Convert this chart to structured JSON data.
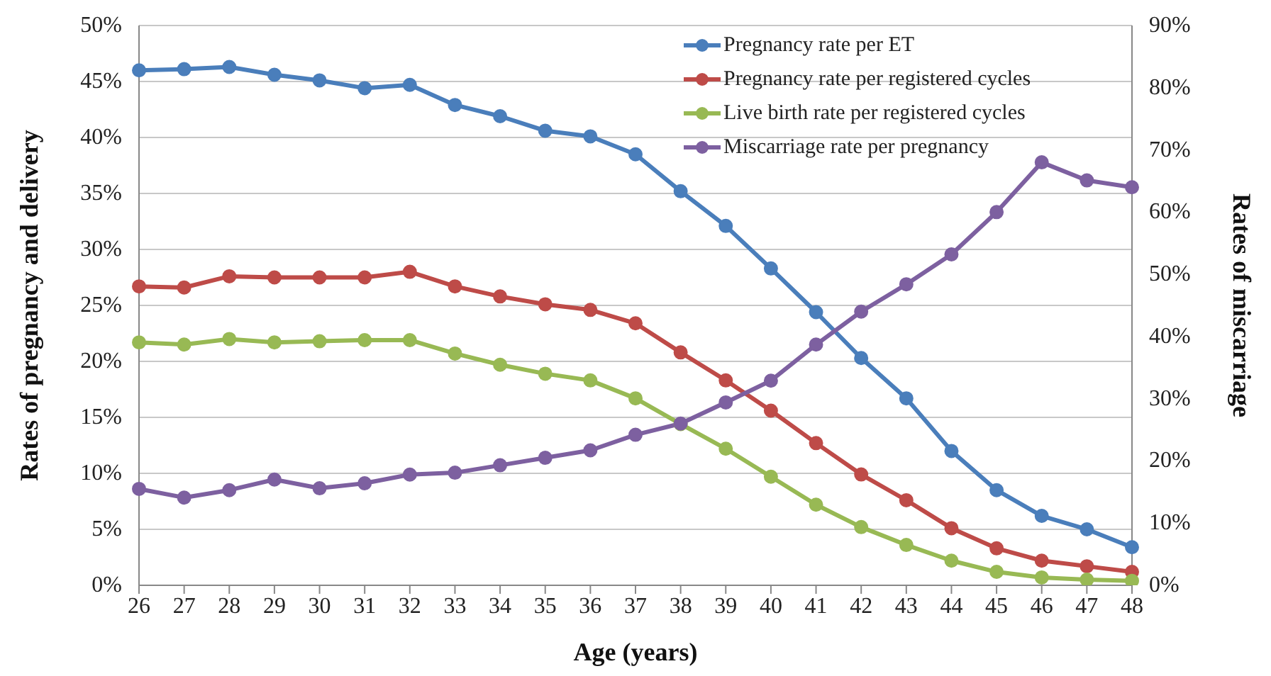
{
  "chart_data": {
    "type": "line",
    "xlabel": "Age (years)",
    "ylabel": "Rates of pregnancy and delivery",
    "y2label": "Rates of miscarriage",
    "categories": [
      "26",
      "27",
      "28",
      "29",
      "30",
      "31",
      "32",
      "33",
      "34",
      "35",
      "36",
      "37",
      "38",
      "39",
      "40",
      "41",
      "42",
      "43",
      "44",
      "45",
      "46",
      "47",
      "48"
    ],
    "series": [
      {
        "name": "Pregnancy rate per ET",
        "color": "#4a7ebb",
        "values": [
          46.0,
          46.1,
          46.3,
          45.6,
          45.1,
          44.4,
          44.7,
          42.9,
          41.9,
          40.6,
          40.1,
          38.5,
          35.2,
          32.1,
          28.3,
          24.4,
          20.3,
          16.7,
          12.0,
          8.5,
          6.2,
          5.0,
          3.4
        ]
      },
      {
        "name": "Pregnancy rate per registered cycles",
        "color": "#be4b48",
        "values": [
          26.7,
          26.6,
          27.6,
          27.5,
          27.5,
          27.5,
          28.0,
          26.7,
          25.8,
          25.1,
          24.6,
          23.4,
          20.8,
          18.3,
          15.6,
          12.7,
          9.9,
          7.6,
          5.1,
          3.3,
          2.2,
          1.7,
          1.2
        ]
      },
      {
        "name": "Live birth rate per registered cycles",
        "color": "#98b954",
        "values": [
          21.7,
          21.5,
          22.0,
          21.7,
          21.8,
          21.9,
          21.9,
          20.7,
          19.7,
          18.9,
          18.3,
          16.7,
          14.4,
          12.2,
          9.7,
          7.2,
          5.2,
          3.6,
          2.2,
          1.2,
          0.7,
          0.5,
          0.4
        ]
      },
      {
        "name": "Miscarriage rate per pregnancy",
        "color": "#7d60a0",
        "axis": "y2",
        "values": [
          15.5,
          14.1,
          15.3,
          17.0,
          15.6,
          16.4,
          17.8,
          18.1,
          19.3,
          20.5,
          21.7,
          24.2,
          26.0,
          29.4,
          32.9,
          38.7,
          44.0,
          48.4,
          53.2,
          60.0,
          68.0,
          65.1,
          64.0
        ]
      }
    ],
    "ylim": [
      0,
      50
    ],
    "yticks": [
      {
        "value": 0,
        "label": "0%"
      },
      {
        "value": 5,
        "label": "5%"
      },
      {
        "value": 10,
        "label": "10%"
      },
      {
        "value": 15,
        "label": "15%"
      },
      {
        "value": 20,
        "label": "20%"
      },
      {
        "value": 25,
        "label": "25%"
      },
      {
        "value": 30,
        "label": "30%"
      },
      {
        "value": 35,
        "label": "35%"
      },
      {
        "value": 40,
        "label": "40%"
      },
      {
        "value": 45,
        "label": "45%"
      },
      {
        "value": 50,
        "label": "50%"
      }
    ],
    "y2lim": [
      0,
      90
    ],
    "y2ticks": [
      {
        "value": 0,
        "label": "0%"
      },
      {
        "value": 10,
        "label": "10%"
      },
      {
        "value": 20,
        "label": "20%"
      },
      {
        "value": 30,
        "label": "30%"
      },
      {
        "value": 40,
        "label": "40%"
      },
      {
        "value": 50,
        "label": "50%"
      },
      {
        "value": 60,
        "label": "60%"
      },
      {
        "value": 70,
        "label": "70%"
      },
      {
        "value": 80,
        "label": "80%"
      },
      {
        "value": 90,
        "label": "90%"
      }
    ],
    "grid": "y",
    "legend": "top right",
    "marker": "circle",
    "line_style": "solid"
  }
}
